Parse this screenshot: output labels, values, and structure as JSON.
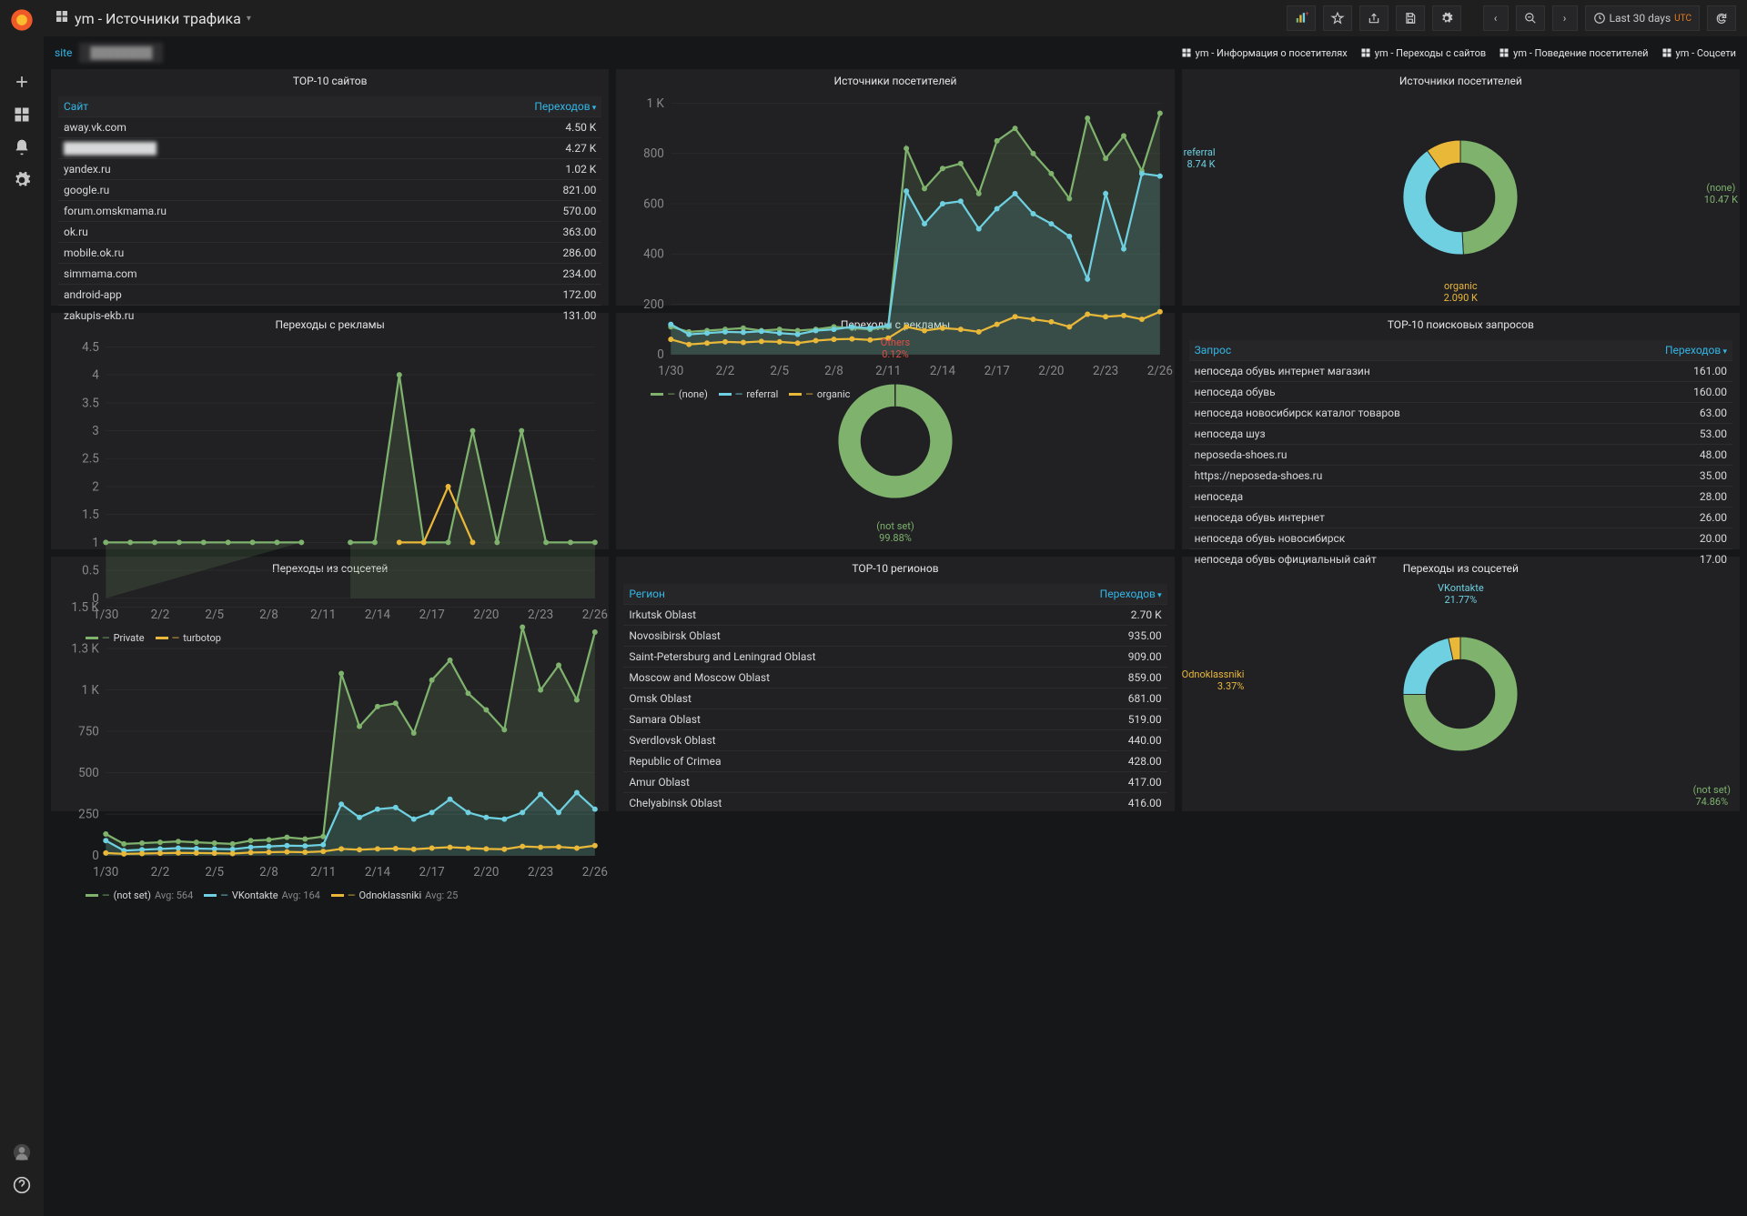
{
  "colors": {
    "green": "#7eb26d",
    "blue": "#6ed0e0",
    "orange": "#eab839",
    "red": "#e24d42",
    "bg": "#161719",
    "panel": "#212124",
    "text": "#d8d9da",
    "axis": "#555",
    "grid": "#2c2c2e"
  },
  "topbar": {
    "title": "ym - Источники трафика",
    "time_label": "Last 30 days",
    "utc": "UTC"
  },
  "subbar": {
    "site_label": "site",
    "site_value": "████████",
    "links": [
      "ym - Информация о посетителях",
      "ym - Переходы с сайтов",
      "ym - Поведение посетителей",
      "ym - Соцсети"
    ]
  },
  "panels": {
    "top10sites": {
      "title": "TOP-10 сайтов",
      "col_site": "Сайт",
      "col_val": "Переходов",
      "rows": [
        [
          "away.vk.com",
          "4.50 K"
        ],
        [
          "████████████",
          "4.27 K"
        ],
        [
          "yandex.ru",
          "1.02 K"
        ],
        [
          "google.ru",
          "821.00"
        ],
        [
          "forum.omskmama.ru",
          "570.00"
        ],
        [
          "ok.ru",
          "363.00"
        ],
        [
          "mobile.ok.ru",
          "286.00"
        ],
        [
          "simmama.com",
          "234.00"
        ],
        [
          "android-app",
          "172.00"
        ],
        [
          "zakupis-ekb.ru",
          "131.00"
        ]
      ]
    },
    "src_line": {
      "title": "Источники посетителей",
      "type": "line",
      "x_labels": [
        "1/30",
        "2/2",
        "2/5",
        "2/8",
        "2/11",
        "2/14",
        "2/17",
        "2/20",
        "2/23",
        "2/26"
      ],
      "ylim": [
        0,
        1000
      ],
      "ytick_step": 200,
      "series": [
        {
          "name": "(none)",
          "color": "#7eb26d",
          "values": [
            110,
            90,
            95,
            100,
            105,
            95,
            100,
            95,
            100,
            110,
            105,
            100,
            110,
            820,
            660,
            740,
            760,
            640,
            850,
            900,
            800,
            720,
            620,
            940,
            780,
            870,
            730,
            960
          ],
          "fill": true
        },
        {
          "name": "referral",
          "color": "#6ed0e0",
          "values": [
            120,
            80,
            85,
            90,
            88,
            92,
            85,
            80,
            95,
            100,
            110,
            105,
            115,
            650,
            520,
            600,
            610,
            500,
            580,
            640,
            560,
            520,
            470,
            300,
            640,
            420,
            720,
            710
          ],
          "fill": true
        },
        {
          "name": "organic",
          "color": "#eab839",
          "values": [
            60,
            40,
            45,
            50,
            48,
            52,
            50,
            45,
            55,
            60,
            62,
            58,
            65,
            110,
            95,
            105,
            100,
            90,
            120,
            150,
            140,
            130,
            110,
            160,
            150,
            155,
            140,
            170
          ],
          "fill": false
        }
      ]
    },
    "src_donut": {
      "title": "Источники посетителей",
      "type": "donut",
      "slices": [
        {
          "label": "(none)",
          "sub": "10.47 K",
          "color": "#7eb26d",
          "value": 10470
        },
        {
          "label": "referral",
          "sub": "8.74 K",
          "color": "#6ed0e0",
          "value": 8740
        },
        {
          "label": "organic",
          "sub": "2.090 K",
          "color": "#eab839",
          "value": 2090
        }
      ]
    },
    "ads_line": {
      "title": "Переходы с рекламы",
      "type": "line",
      "x_labels": [
        "1/30",
        "2/2",
        "2/5",
        "2/8",
        "2/11",
        "2/14",
        "2/17",
        "2/20",
        "2/23",
        "2/26"
      ],
      "ylim": [
        0,
        4.5
      ],
      "ytick_step": 0.5,
      "series": [
        {
          "name": "Private",
          "color": "#7eb26d",
          "values": [
            1,
            1,
            1,
            1,
            1,
            1,
            1,
            1,
            1,
            null,
            1,
            1,
            4,
            1,
            1,
            3,
            1,
            3,
            1,
            1,
            1
          ],
          "fill": true
        },
        {
          "name": "turbotop",
          "color": "#eab839",
          "values": [
            null,
            null,
            null,
            null,
            null,
            null,
            null,
            null,
            null,
            null,
            null,
            null,
            1,
            1,
            2,
            1,
            null,
            null,
            null,
            null,
            null
          ],
          "fill": false
        }
      ]
    },
    "ads_donut": {
      "title": "Переходы с рекламы",
      "type": "donut",
      "slices": [
        {
          "label": "(not set)",
          "sub": "99.88%",
          "color": "#7eb26d",
          "value": 99.88
        },
        {
          "label": "Others",
          "sub": "0.12%",
          "color": "#e24d42",
          "value": 0.12
        }
      ]
    },
    "top10q": {
      "title": "TOP-10 поисковых запросов",
      "col_q": "Запрос",
      "col_val": "Переходов",
      "rows": [
        [
          "непоседа обувь интернет магазин",
          "161.00"
        ],
        [
          "непоседа обувь",
          "160.00"
        ],
        [
          "непоседа новосибирск каталог товаров",
          "63.00"
        ],
        [
          "непоседа шуз",
          "53.00"
        ],
        [
          "neposeda-shoes.ru",
          "48.00"
        ],
        [
          "https://neposeda-shoes.ru",
          "35.00"
        ],
        [
          "непоседа",
          "28.00"
        ],
        [
          "непоседа обувь интернет",
          "26.00"
        ],
        [
          "непоседа обувь новосибирск",
          "20.00"
        ],
        [
          "непоседа обувь официальный сайт",
          "17.00"
        ]
      ]
    },
    "soc_line": {
      "title": "Переходы из соцсетей",
      "type": "line",
      "x_labels": [
        "1/30",
        "2/2",
        "2/5",
        "2/8",
        "2/11",
        "2/14",
        "2/17",
        "2/20",
        "2/23",
        "2/26"
      ],
      "ylim": [
        0,
        1600
      ],
      "ytick_step": 250,
      "series": [
        {
          "name": "(not set)",
          "avg": "Avg: 564",
          "color": "#7eb26d",
          "values": [
            130,
            70,
            75,
            80,
            85,
            80,
            75,
            70,
            90,
            95,
            110,
            100,
            115,
            1100,
            780,
            900,
            920,
            740,
            1060,
            1180,
            980,
            880,
            760,
            1380,
            1000,
            1150,
            940,
            1350
          ],
          "fill": true
        },
        {
          "name": "VKontakte",
          "avg": "Avg: 164",
          "color": "#6ed0e0",
          "values": [
            90,
            30,
            35,
            40,
            45,
            42,
            40,
            38,
            50,
            55,
            60,
            58,
            65,
            310,
            230,
            280,
            290,
            220,
            260,
            340,
            260,
            230,
            220,
            260,
            370,
            260,
            380,
            280
          ],
          "fill": true
        },
        {
          "name": "Odnoklassniki",
          "avg": "Avg: 25",
          "color": "#eab839",
          "values": [
            15,
            10,
            12,
            14,
            16,
            15,
            14,
            12,
            18,
            20,
            22,
            20,
            25,
            40,
            35,
            40,
            42,
            38,
            45,
            50,
            45,
            40,
            38,
            55,
            50,
            52,
            45,
            60
          ],
          "fill": false
        }
      ]
    },
    "top10reg": {
      "title": "TOP-10 регионов",
      "col_r": "Регион",
      "col_val": "Переходов",
      "rows": [
        [
          "Irkutsk Oblast",
          "2.70 K"
        ],
        [
          "Novosibirsk Oblast",
          "935.00"
        ],
        [
          "Saint-Petersburg and Leningrad Oblast",
          "909.00"
        ],
        [
          "Moscow and Moscow Oblast",
          "859.00"
        ],
        [
          "Omsk Oblast",
          "681.00"
        ],
        [
          "Samara Oblast",
          "519.00"
        ],
        [
          "Sverdlovsk Oblast",
          "440.00"
        ],
        [
          "Republic of Crimea",
          "428.00"
        ],
        [
          "Amur Oblast",
          "417.00"
        ],
        [
          "Chelyabinsk Oblast",
          "416.00"
        ]
      ]
    },
    "soc_donut": {
      "title": "Переходы из соцсетей",
      "type": "donut",
      "slices": [
        {
          "label": "(not set)",
          "sub": "74.86%",
          "color": "#7eb26d",
          "value": 74.86
        },
        {
          "label": "VKontakte",
          "sub": "21.77%",
          "color": "#6ed0e0",
          "value": 21.77
        },
        {
          "label": "Odnoklassniki",
          "sub": "3.37%",
          "color": "#eab839",
          "value": 3.37
        }
      ]
    }
  }
}
